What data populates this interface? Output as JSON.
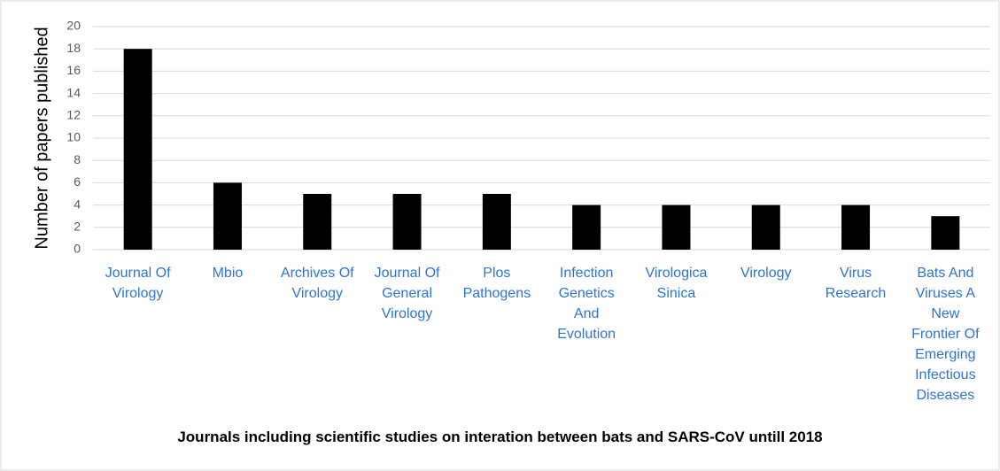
{
  "chart_data": {
    "type": "bar",
    "x_label": "Journals including  scientific studies on interation between bats and SARS-CoV untill 2018",
    "y_label": "Number of papers published",
    "categories": [
      "Journal Of Virology",
      "Mbio",
      "Archives Of Virology",
      "Journal Of General Virology",
      "Plos Pathogens",
      "Infection Genetics And Evolution",
      "Virologica Sinica",
      "Virology",
      "Virus Research",
      "Bats And Viruses A New Frontier Of Emerging Infectious Diseases"
    ],
    "values": [
      18,
      6,
      5,
      5,
      5,
      4,
      4,
      4,
      4,
      3
    ],
    "color": "#000000",
    "ylim": [
      0,
      20
    ],
    "yticks": [
      0,
      2,
      4,
      6,
      8,
      10,
      12,
      14,
      16,
      18,
      20
    ],
    "grid": true
  }
}
